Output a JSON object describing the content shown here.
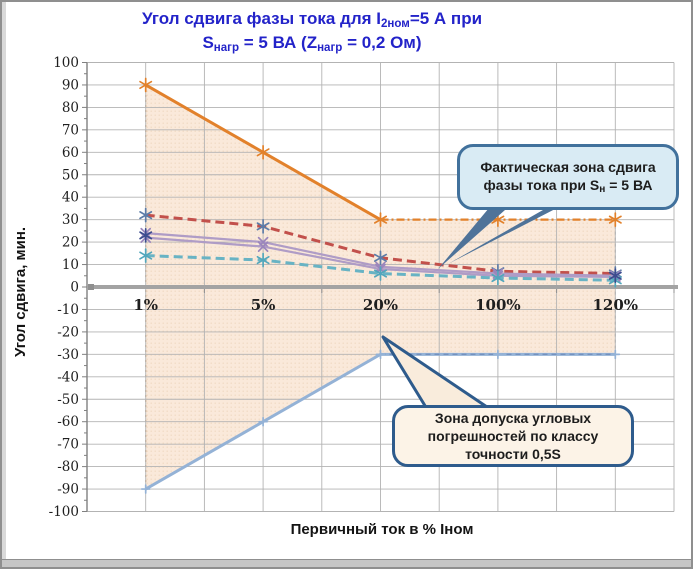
{
  "accent_colors": {
    "title_blue": "#2323c9",
    "zone_fill": "#fae9da",
    "zone_dots": "#efd8c0",
    "grid": "#b3b3b3",
    "zero_line": "#a3a3a3",
    "callout_actual_fill": "#d9ebf4",
    "callout_actual_border": "#41719c",
    "callout_tolerance_fill": "#fcf3e7",
    "callout_tolerance_border": "#2e5b8c",
    "tick_text": "#1f1f1f"
  },
  "chart_data": {
    "type": "line",
    "title_lines": [
      [
        {
          "t": "Угол сдвига фазы тока  для I"
        },
        {
          "t": "2ном",
          "sub": true
        },
        {
          "t": "=5 А при"
        }
      ],
      [
        {
          "t": "S"
        },
        {
          "t": "нагр",
          "sub": true
        },
        {
          "t": " = 5 ВА (Z"
        },
        {
          "t": "нагр",
          "sub": true
        },
        {
          "t": " = 0,2 Ом)"
        }
      ]
    ],
    "xlabel": "Первичный ток в % Iном",
    "ylabel": "Угол сдвига, мин.",
    "categories": [
      "1%",
      "5%",
      "20%",
      "100%",
      "120%"
    ],
    "ylim": [
      -100,
      100
    ],
    "ytick_step": 10,
    "grid": true,
    "legend": "none",
    "series": [
      {
        "name": "upper-tolerance-limit",
        "values": [
          90,
          60,
          30,
          30,
          30
        ],
        "color": "#e2812b",
        "width": 3,
        "style": "solid",
        "marker": "star",
        "marker_color": "#e2812b",
        "segments": [
          {
            "i0": 0,
            "i1": 2,
            "dash": "",
            "w": 3
          },
          {
            "i0": 2,
            "i1": 4,
            "dash": "8,3,2,3",
            "w": 2.2
          }
        ]
      },
      {
        "name": "lower-tolerance-limit",
        "values": [
          -90,
          -60,
          -30,
          -30,
          -30
        ],
        "color": "#94b2d6",
        "width": 3,
        "style": "solid",
        "marker": "plus",
        "marker_color": "#94b2d6",
        "overlay_dash": {
          "i0": 2,
          "i1": 4,
          "color": "#7591be",
          "dash": "5,4",
          "w": 1.4
        }
      },
      {
        "name": "actual-shift-max",
        "values": [
          32,
          27,
          13,
          7,
          6
        ],
        "color": "#c2504b",
        "width": 3,
        "style": "dashed",
        "marker": "star",
        "marker_color": "#5c7ca8"
      },
      {
        "name": "actual-shift-mid-upper",
        "values": [
          24,
          20,
          9,
          6,
          5
        ],
        "color": "#af9cc6",
        "width": 2.2,
        "style": "solid",
        "marker": "x",
        "marker_color": "#9b86bc"
      },
      {
        "name": "actual-shift-mid-lower",
        "values": [
          22,
          18,
          8,
          5,
          4.5
        ],
        "color": "#af9cc6",
        "width": 2.2,
        "style": "solid",
        "marker": "x",
        "marker_color": "#9b86bc"
      },
      {
        "name": "actual-shift-min",
        "values": [
          14,
          12,
          6,
          4,
          3
        ],
        "color": "#68b3c4",
        "width": 3,
        "style": "dashed",
        "marker": "star",
        "marker_color": "#52a7bc"
      }
    ],
    "extra_markers": [
      {
        "cat": 0,
        "y": 23,
        "type": "star",
        "color": "#3c4c8f"
      },
      {
        "cat": 4,
        "y": 5,
        "type": "star",
        "color": "#3c4c8f"
      }
    ],
    "tolerance_zone": {
      "upper": [
        90,
        60,
        30,
        30,
        30
      ],
      "lower": [
        -90,
        -60,
        -30,
        -30,
        -30
      ],
      "fill": "#fae9da"
    },
    "annotations": [
      {
        "id": "actual-zone",
        "segments": [
          {
            "t": "Фактическая зона сдвига фазы тока при S"
          },
          {
            "t": "н",
            "sub": true
          },
          {
            "t": " = 5 ВА"
          }
        ]
      },
      {
        "id": "tolerance-zone",
        "segments": [
          {
            "t": "Зона допуска угловых погрешностей по классу точности  0,5S"
          }
        ]
      }
    ]
  }
}
